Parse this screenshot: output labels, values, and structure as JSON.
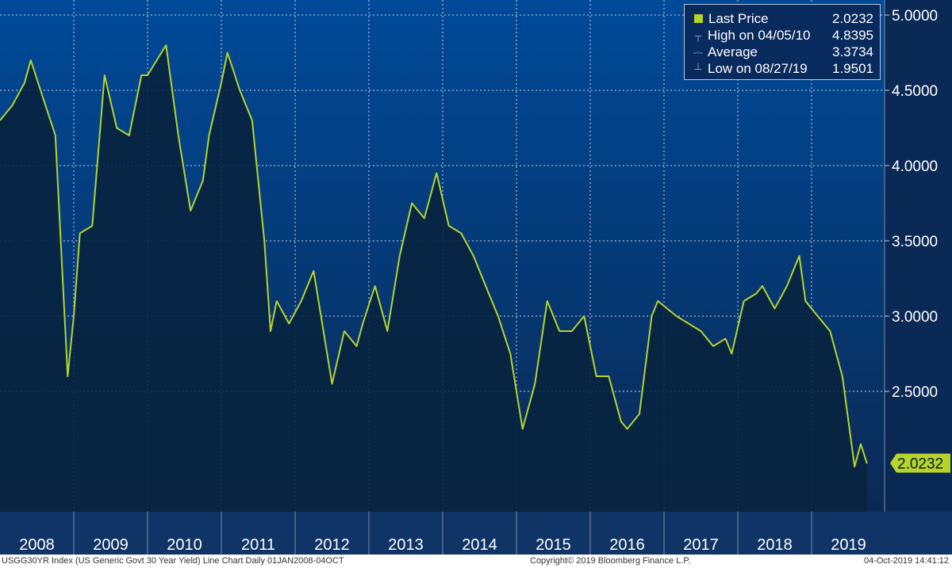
{
  "chart_data": {
    "type": "area",
    "title": "USGG30YR Index (US Generic Govt 30 Year Yield) Line Chart",
    "y_axis_side": "right",
    "ylim": [
      1.7,
      5.1
    ],
    "y_ticks": [
      "5.0000",
      "4.5000",
      "4.0000",
      "3.5000",
      "3.0000",
      "2.5000"
    ],
    "x_labels": [
      "2008",
      "2009",
      "2010",
      "2011",
      "2012",
      "2013",
      "2014",
      "2015",
      "2016",
      "2017",
      "2018",
      "2019"
    ],
    "grid": true,
    "series": [
      {
        "name": "Last Price",
        "color": "#b6d42a",
        "x": [
          "2008-01",
          "2008-03",
          "2008-05",
          "2008-06",
          "2008-08",
          "2008-10",
          "2008-11",
          "2008-12",
          "2009-01",
          "2009-02",
          "2009-04",
          "2009-06",
          "2009-08",
          "2009-10",
          "2009-12",
          "2010-01",
          "2010-04",
          "2010-06",
          "2010-08",
          "2010-10",
          "2010-11",
          "2011-01",
          "2011-02",
          "2011-04",
          "2011-06",
          "2011-08",
          "2011-09",
          "2011-10",
          "2011-12",
          "2012-02",
          "2012-04",
          "2012-06",
          "2012-07",
          "2012-09",
          "2012-11",
          "2012-12",
          "2013-02",
          "2013-04",
          "2013-06",
          "2013-08",
          "2013-10",
          "2013-12",
          "2014-02",
          "2014-04",
          "2014-06",
          "2014-08",
          "2014-10",
          "2014-12",
          "2015-01",
          "2015-02",
          "2015-04",
          "2015-06",
          "2015-08",
          "2015-10",
          "2015-12",
          "2016-02",
          "2016-04",
          "2016-06",
          "2016-07",
          "2016-09",
          "2016-11",
          "2016-12",
          "2017-03",
          "2017-05",
          "2017-07",
          "2017-09",
          "2017-11",
          "2017-12",
          "2018-02",
          "2018-04",
          "2018-05",
          "2018-07",
          "2018-09",
          "2018-11",
          "2018-12",
          "2019-02",
          "2019-04",
          "2019-06",
          "2019-08",
          "2019-09",
          "2019-10"
        ],
        "y": [
          4.3,
          4.4,
          4.55,
          4.7,
          4.45,
          4.2,
          3.4,
          2.6,
          3.0,
          3.55,
          3.6,
          4.6,
          4.25,
          4.2,
          4.6,
          4.6,
          4.8,
          4.2,
          3.7,
          3.9,
          4.2,
          4.55,
          4.75,
          4.5,
          4.3,
          3.5,
          2.9,
          3.1,
          2.95,
          3.1,
          3.3,
          2.8,
          2.55,
          2.9,
          2.8,
          2.95,
          3.2,
          2.9,
          3.4,
          3.75,
          3.65,
          3.95,
          3.6,
          3.55,
          3.4,
          3.2,
          3.0,
          2.75,
          2.5,
          2.25,
          2.55,
          3.1,
          2.9,
          2.9,
          3.0,
          2.6,
          2.6,
          2.3,
          2.25,
          2.35,
          3.0,
          3.1,
          3.0,
          2.95,
          2.9,
          2.8,
          2.85,
          2.75,
          3.1,
          3.15,
          3.2,
          3.05,
          3.2,
          3.4,
          3.1,
          3.0,
          2.9,
          2.6,
          2.0,
          2.15,
          2.02
        ]
      }
    ],
    "legend": {
      "placement": "top-right",
      "entries": [
        {
          "label": "Last Price",
          "value": "2.0232"
        },
        {
          "label": "High on 04/05/10",
          "value": "4.8395"
        },
        {
          "label": "Average",
          "value": "3.3734"
        },
        {
          "label": "Low on 08/27/19",
          "value": "1.9501"
        }
      ]
    },
    "last_value": 2.0232,
    "last_value_label": "2.0232"
  },
  "footer": {
    "left": "USGG30YR Index (US Generic Govt 30 Year Yield) Line Chart  Daily 01JAN2008-04OCT",
    "center": "Copyright© 2019 Bloomberg Finance L.P.",
    "right": "04-Oct-2019 14:41:12"
  }
}
